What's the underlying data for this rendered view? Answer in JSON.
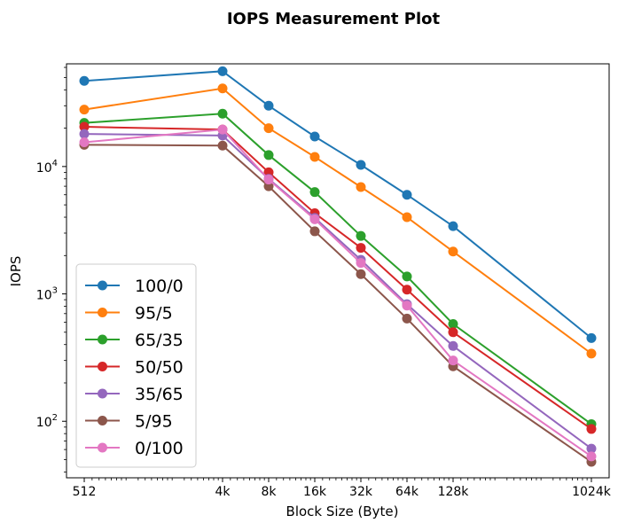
{
  "chart_data": {
    "type": "line",
    "title": "IOPS Measurement Plot",
    "xlabel": "Block Size (Byte)",
    "ylabel": "IOPS",
    "x_scale": "log2",
    "y_scale": "log10",
    "grid": false,
    "legend_position": "lower-left",
    "categories": [
      "512",
      "4k",
      "8k",
      "16k",
      "32k",
      "64k",
      "128k",
      "1024k"
    ],
    "x": [
      512,
      4096,
      8192,
      16384,
      32768,
      65536,
      131072,
      1048576
    ],
    "ylim": [
      36,
      64000
    ],
    "y_ticks": [
      {
        "value": 100,
        "base": "10",
        "exp": "2"
      },
      {
        "value": 1000,
        "base": "10",
        "exp": "3"
      },
      {
        "value": 10000,
        "base": "10",
        "exp": "4"
      }
    ],
    "series": [
      {
        "name": "100/0",
        "color": "#1f77b4",
        "values": [
          47000,
          56000,
          30000,
          17200,
          10300,
          6000,
          3400,
          450
        ]
      },
      {
        "name": "95/5",
        "color": "#ff7f0e",
        "values": [
          28000,
          41000,
          20000,
          11900,
          6900,
          4000,
          2150,
          340
        ]
      },
      {
        "name": "65/35",
        "color": "#2ca02c",
        "values": [
          22000,
          26000,
          12300,
          6300,
          2850,
          1370,
          580,
          95
        ]
      },
      {
        "name": "50/50",
        "color": "#d62728",
        "values": [
          20500,
          19500,
          9000,
          4300,
          2300,
          1080,
          500,
          87
        ]
      },
      {
        "name": "35/65",
        "color": "#9467bd",
        "values": [
          18000,
          17500,
          8000,
          3950,
          1850,
          830,
          390,
          61
        ]
      },
      {
        "name": "5/95",
        "color": "#8c564b",
        "values": [
          14800,
          14600,
          7000,
          3100,
          1430,
          640,
          270,
          48
        ]
      },
      {
        "name": "0/100",
        "color": "#e377c2",
        "values": [
          15500,
          19500,
          7900,
          3850,
          1750,
          810,
          300,
          53
        ]
      }
    ]
  }
}
